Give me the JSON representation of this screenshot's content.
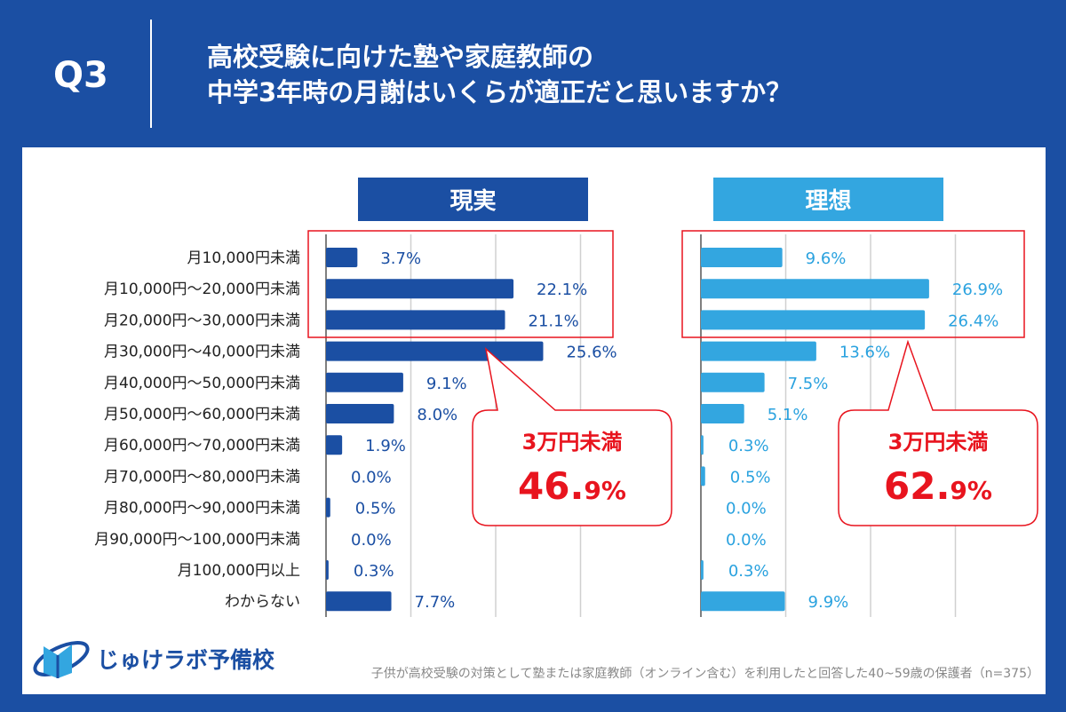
{
  "header": {
    "q": "Q3",
    "title_line1": "高校受験に向けた塾や家庭教師の",
    "title_line2": "中学3年時の月謝はいくらが適正だと思いますか？"
  },
  "colors": {
    "background": "#1b4fa3",
    "reality": "#1b4fa3",
    "ideal": "#33a6e0",
    "highlight": "#e8141e"
  },
  "chart_data": {
    "type": "bar",
    "orientation": "horizontal",
    "categories": [
      "月10,000円未満",
      "月10,000円～20,000円未満",
      "月20,000円～30,000円未満",
      "月30,000円～40,000円未満",
      "月40,000円～50,000円未満",
      "月50,000円～60,000円未満",
      "月60,000円～70,000円未満",
      "月70,000円～80,000円未満",
      "月80,000円～90,000円未満",
      "月90,000円～100,000円未満",
      "月100,000円以上",
      "わからない"
    ],
    "series": [
      {
        "name": "現実",
        "values": [
          3.7,
          22.1,
          21.1,
          25.6,
          9.1,
          8.0,
          1.9,
          0.0,
          0.5,
          0.0,
          0.3,
          7.7
        ]
      },
      {
        "name": "理想",
        "values": [
          9.6,
          26.9,
          26.4,
          13.6,
          7.5,
          5.1,
          0.3,
          0.5,
          0.0,
          0.0,
          0.3,
          9.9
        ]
      }
    ],
    "xlim": [
      0,
      30
    ],
    "grid": true,
    "unit": "%",
    "callouts": [
      {
        "label": "3万円未満",
        "value": "46.",
        "value_small": "9%"
      },
      {
        "label": "3万円未満",
        "value": "62.",
        "value_small": "9%"
      }
    ]
  },
  "logo": {
    "text": "じゅけラボ予備校"
  },
  "footnote": "子供が高校受験の対策として塾または家庭教師（オンライン含む）を利用したと回答した40~59歳の保護者（n=375）"
}
